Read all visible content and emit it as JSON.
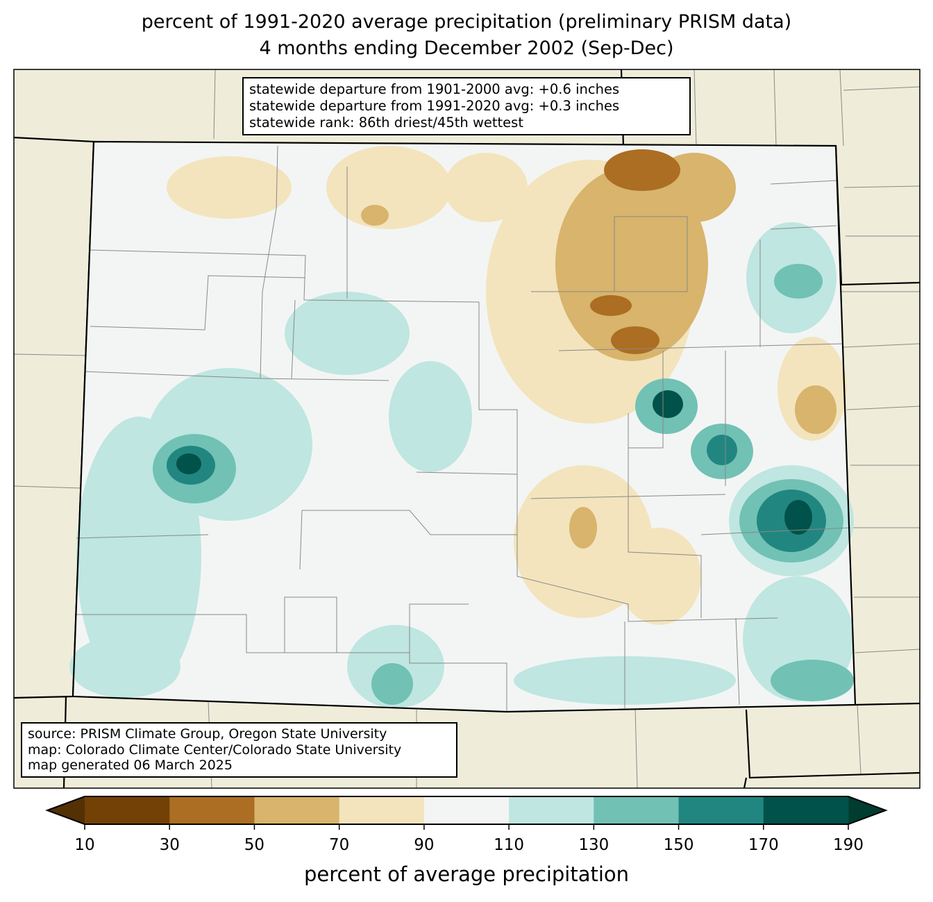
{
  "title": {
    "line1": "percent of 1991-2020 average precipitation (preliminary PRISM data)",
    "line2": "4 months ending December 2002 (Sep-Dec)"
  },
  "stats": {
    "line1": "statewide departure from 1901-2000 avg: +0.6 inches",
    "line2": "statewide departure from 1991-2020 avg: +0.3 inches",
    "line3": "statewide rank: 86th driest/45th wettest"
  },
  "credits": {
    "line1": "source: PRISM Climate Group, Oregon State University",
    "line2": "map: Colorado Climate Center/Colorado State University",
    "line3": "map generated 06 March 2025"
  },
  "colorbar": {
    "label": "percent of average precipitation",
    "ticks": [
      "10",
      "30",
      "50",
      "70",
      "90",
      "110",
      "130",
      "150",
      "170",
      "190"
    ],
    "colors": [
      "#734006",
      "#ab6e22",
      "#d8b46c",
      "#f3e4bd",
      "#f3f5f4",
      "#bfe6e1",
      "#71c1b5",
      "#228680",
      "#01524a"
    ],
    "under_color": "#543005",
    "over_color": "#003c30"
  },
  "colors": {
    "background": "#efedda",
    "state": "#f3f5f4"
  }
}
